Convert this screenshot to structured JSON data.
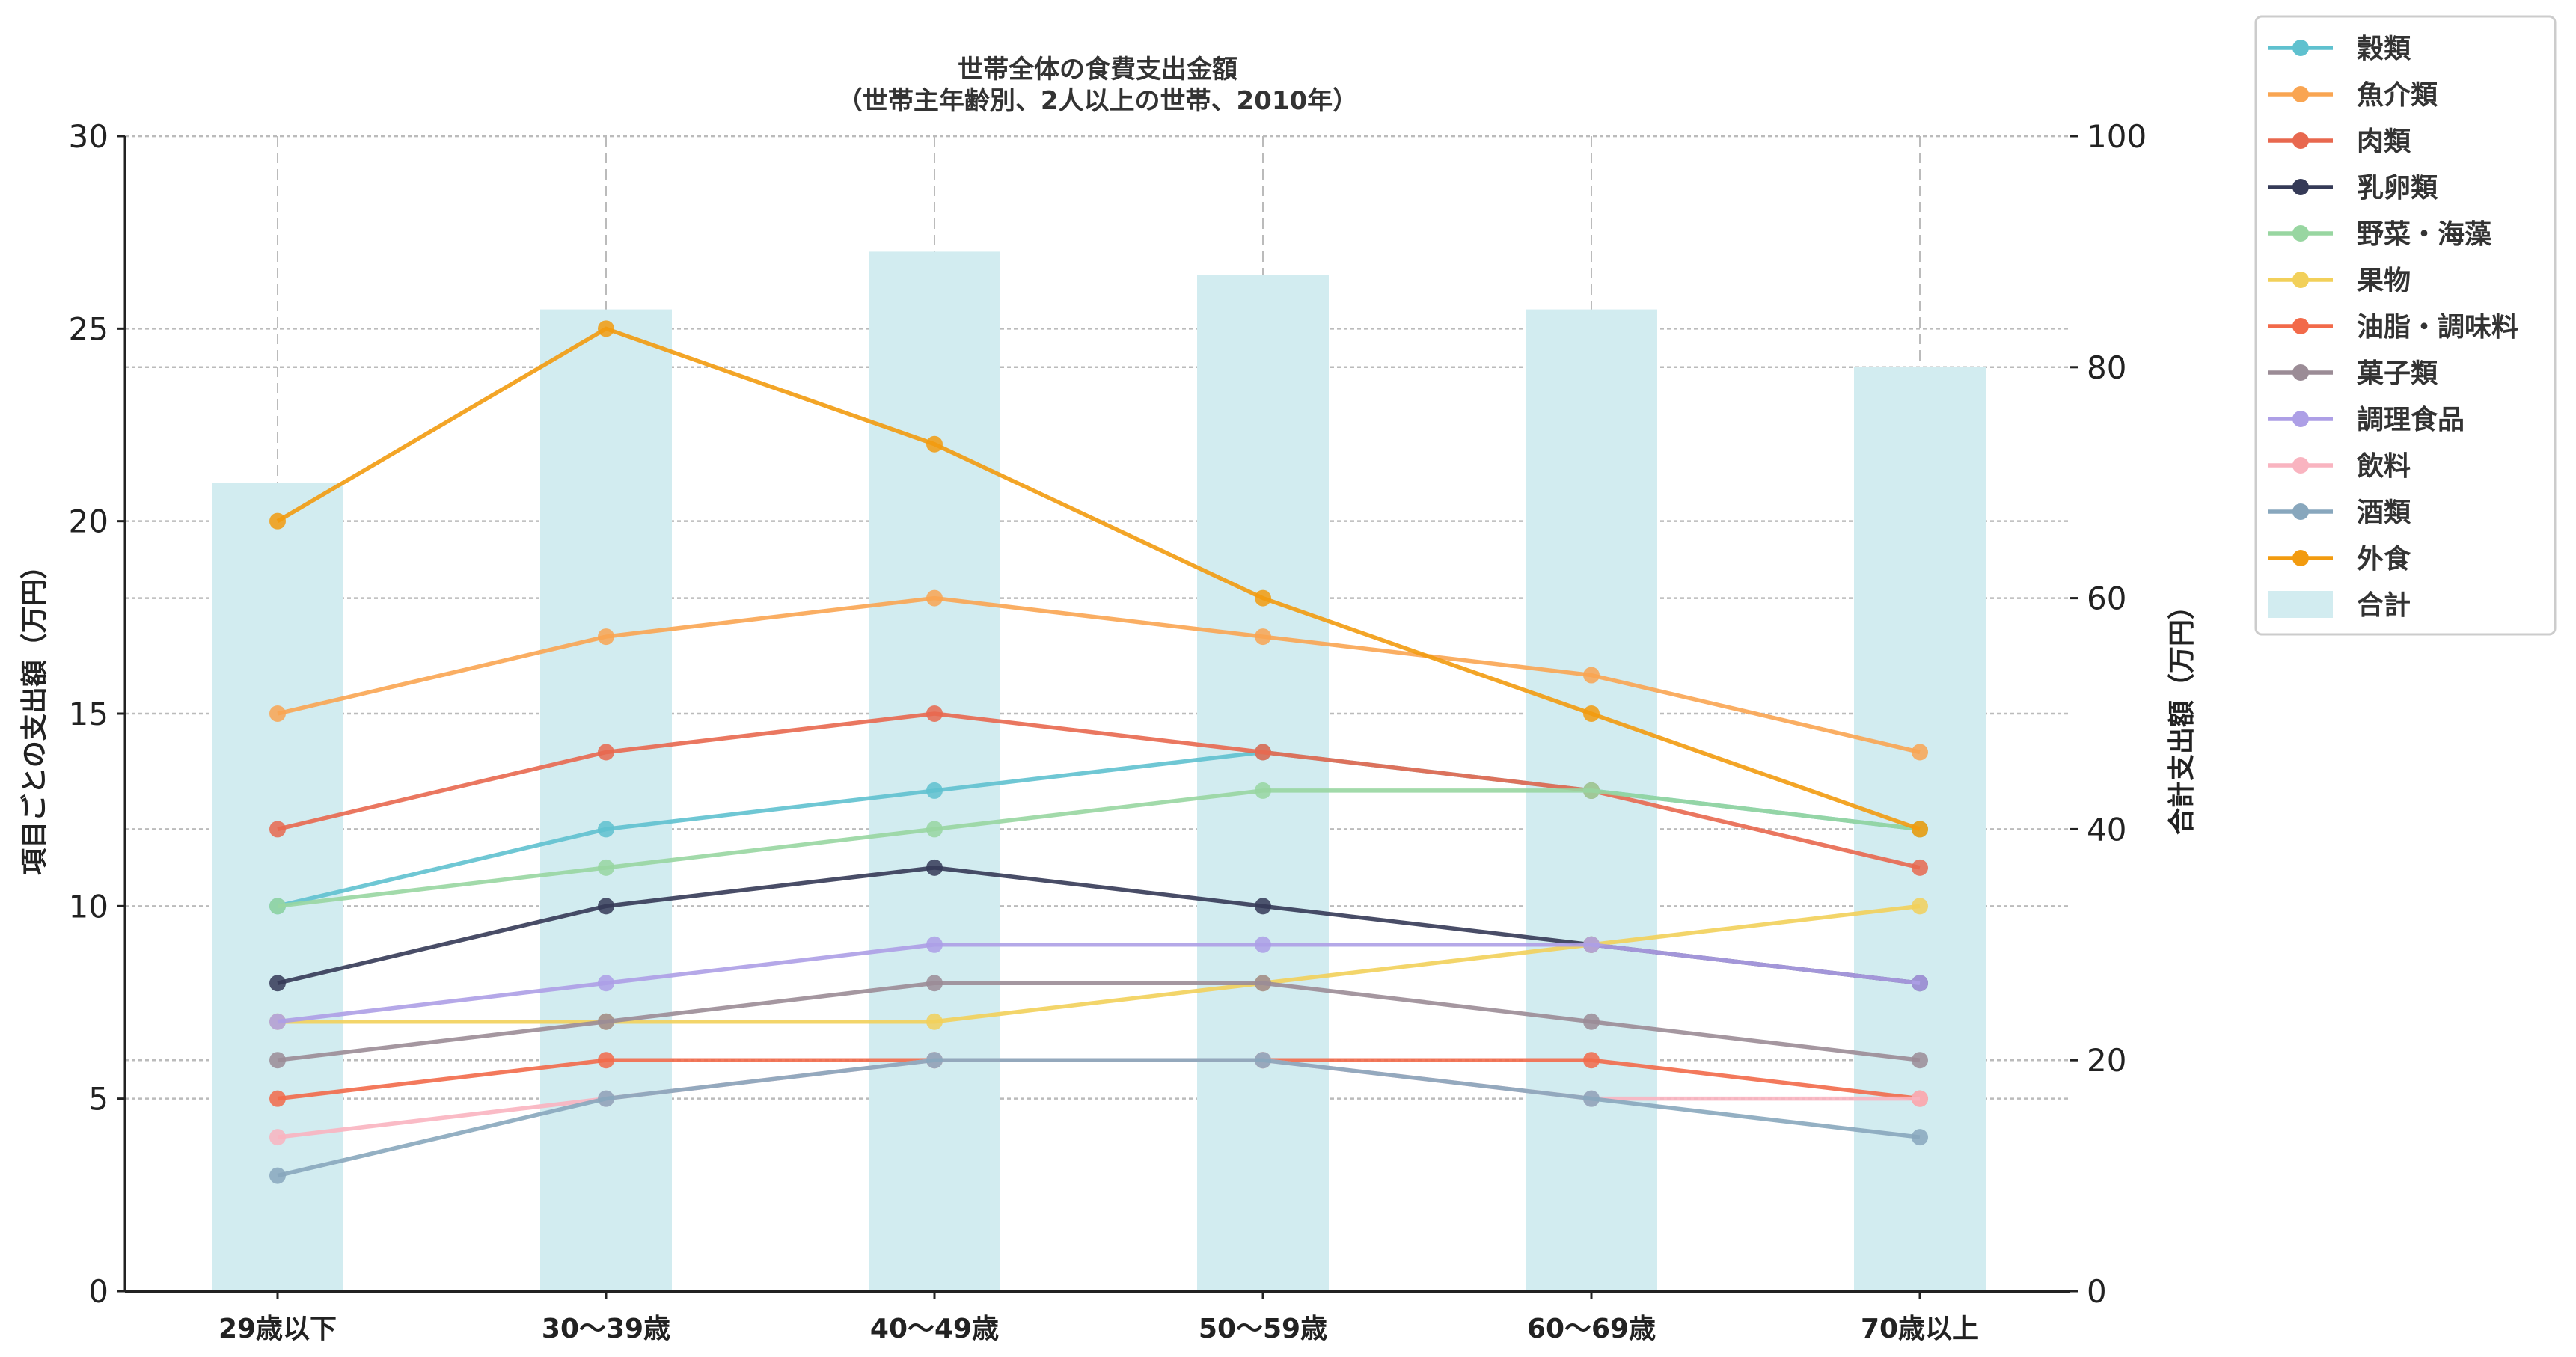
{
  "chart_data": {
    "type": "line",
    "title": "世帯全体の食費支出金額",
    "subtitle": "（世帯主年齢別、2人以上の世帯、2010年）",
    "ylabel": "項目ごとの支出額（万円）",
    "y2label": "合計支出額（万円）",
    "ylim": [
      0,
      30
    ],
    "y2lim": [
      0,
      100
    ],
    "yticks": [
      0,
      5,
      10,
      15,
      20,
      25,
      30
    ],
    "y2ticks": [
      0,
      20,
      40,
      60,
      80,
      100
    ],
    "grid": true,
    "legend_position": "outside-top-right",
    "categories": [
      "29歳以下",
      "30〜39歳",
      "40〜49歳",
      "50〜59歳",
      "60〜69歳",
      "70歳以上"
    ],
    "series": [
      {
        "name": "穀類",
        "color": "#5fc1cf",
        "values": [
          10,
          12,
          13,
          14,
          13,
          12
        ]
      },
      {
        "name": "魚介類",
        "color": "#f9a552",
        "values": [
          15,
          17,
          18,
          17,
          16,
          14
        ]
      },
      {
        "name": "肉類",
        "color": "#e8684f",
        "values": [
          12,
          14,
          15,
          14,
          13,
          11
        ]
      },
      {
        "name": "乳卵類",
        "color": "#353a57",
        "values": [
          8,
          10,
          11,
          10,
          9,
          8
        ]
      },
      {
        "name": "野菜・海藻",
        "color": "#98d6a1",
        "values": [
          10,
          11,
          12,
          13,
          13,
          12
        ]
      },
      {
        "name": "果物",
        "color": "#f2d05a",
        "values": [
          7,
          7,
          7,
          8,
          9,
          10
        ]
      },
      {
        "name": "油脂・調味料",
        "color": "#f26a4a",
        "values": [
          5,
          6,
          6,
          6,
          6,
          5
        ]
      },
      {
        "name": "菓子類",
        "color": "#9b8c96",
        "values": [
          6,
          7,
          8,
          8,
          7,
          6
        ]
      },
      {
        "name": "調理食品",
        "color": "#ad9fe6",
        "values": [
          7,
          8,
          9,
          9,
          9,
          8
        ]
      },
      {
        "name": "飲料",
        "color": "#f9b4c0",
        "values": [
          4,
          5,
          6,
          6,
          5,
          5
        ]
      },
      {
        "name": "酒類",
        "color": "#88a7bd",
        "values": [
          3,
          5,
          6,
          6,
          5,
          4
        ]
      },
      {
        "name": "外食",
        "color": "#f29b0f",
        "values": [
          20,
          25,
          22,
          18,
          15,
          12
        ]
      }
    ],
    "bars": {
      "name": "合計",
      "color": "#d2ecf0",
      "axis": "right",
      "values": [
        70,
        85,
        90,
        88,
        85,
        80
      ]
    }
  }
}
